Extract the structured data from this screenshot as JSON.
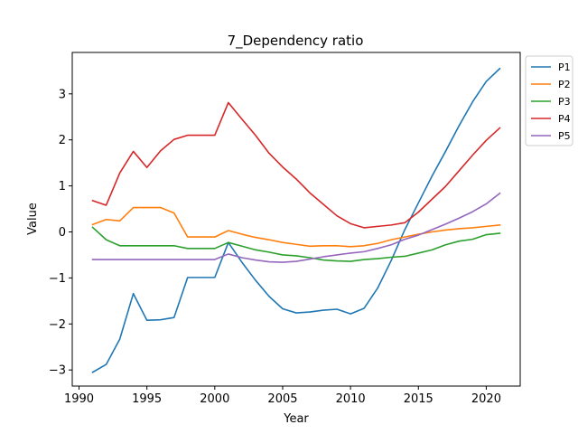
{
  "chart_data": {
    "type": "line",
    "title": "7_Dependency ratio",
    "xlabel": "Year",
    "ylabel": "Value",
    "xlim": [
      1989.5,
      2022.5
    ],
    "ylim": [
      -3.35,
      3.9
    ],
    "xticks": [
      1990,
      1995,
      2000,
      2005,
      2010,
      2015,
      2020
    ],
    "yticks": [
      -3,
      -2,
      -1,
      0,
      1,
      2,
      3
    ],
    "ytick_labels": [
      "−3",
      "−2",
      "−1",
      "0",
      "1",
      "2",
      "3"
    ],
    "grid": false,
    "legend_position": "outside-upper-right",
    "x": [
      1991,
      1992,
      1993,
      1994,
      1995,
      1996,
      1997,
      1998,
      1999,
      2000,
      2001,
      2002,
      2003,
      2004,
      2005,
      2006,
      2007,
      2008,
      2009,
      2010,
      2011,
      2012,
      2013,
      2014,
      2015,
      2016,
      2017,
      2018,
      2019,
      2020,
      2021
    ],
    "series": [
      {
        "name": "P1",
        "color": "#1f77b4",
        "values": [
          -3.05,
          -2.88,
          -2.33,
          -1.34,
          -1.92,
          -1.91,
          -1.86,
          -0.99,
          -0.99,
          -0.99,
          -0.23,
          -0.66,
          -1.05,
          -1.4,
          -1.67,
          -1.76,
          -1.74,
          -1.7,
          -1.68,
          -1.78,
          -1.66,
          -1.22,
          -0.62,
          0.05,
          0.63,
          1.21,
          1.75,
          2.31,
          2.83,
          3.27,
          3.55
        ]
      },
      {
        "name": "P2",
        "color": "#ff7f0e",
        "values": [
          0.16,
          0.27,
          0.24,
          0.53,
          0.53,
          0.53,
          0.41,
          -0.11,
          -0.11,
          -0.11,
          0.03,
          -0.05,
          -0.12,
          -0.17,
          -0.23,
          -0.27,
          -0.31,
          -0.3,
          -0.3,
          -0.32,
          -0.3,
          -0.25,
          -0.17,
          -0.11,
          -0.05,
          0.0,
          0.04,
          0.07,
          0.09,
          0.12,
          0.15
        ]
      },
      {
        "name": "P3",
        "color": "#2ca02c",
        "values": [
          0.1,
          -0.17,
          -0.3,
          -0.3,
          -0.3,
          -0.3,
          -0.3,
          -0.36,
          -0.36,
          -0.36,
          -0.23,
          -0.31,
          -0.39,
          -0.44,
          -0.5,
          -0.52,
          -0.56,
          -0.61,
          -0.63,
          -0.64,
          -0.6,
          -0.58,
          -0.55,
          -0.53,
          -0.46,
          -0.39,
          -0.28,
          -0.2,
          -0.16,
          -0.06,
          -0.03
        ]
      },
      {
        "name": "P4",
        "color": "#d62728",
        "values": [
          0.68,
          0.58,
          1.28,
          1.75,
          1.4,
          1.76,
          2.01,
          2.1,
          2.1,
          2.1,
          2.81,
          2.45,
          2.1,
          1.71,
          1.41,
          1.15,
          0.85,
          0.6,
          0.35,
          0.18,
          0.09,
          0.12,
          0.15,
          0.2,
          0.43,
          0.71,
          0.99,
          1.33,
          1.67,
          1.99,
          2.26
        ]
      },
      {
        "name": "P5",
        "color": "#9467bd",
        "values": [
          -0.6,
          -0.6,
          -0.6,
          -0.6,
          -0.6,
          -0.6,
          -0.6,
          -0.6,
          -0.6,
          -0.6,
          -0.48,
          -0.56,
          -0.61,
          -0.65,
          -0.66,
          -0.64,
          -0.59,
          -0.54,
          -0.5,
          -0.46,
          -0.43,
          -0.36,
          -0.28,
          -0.16,
          -0.07,
          0.05,
          0.17,
          0.3,
          0.44,
          0.61,
          0.84
        ]
      }
    ]
  }
}
